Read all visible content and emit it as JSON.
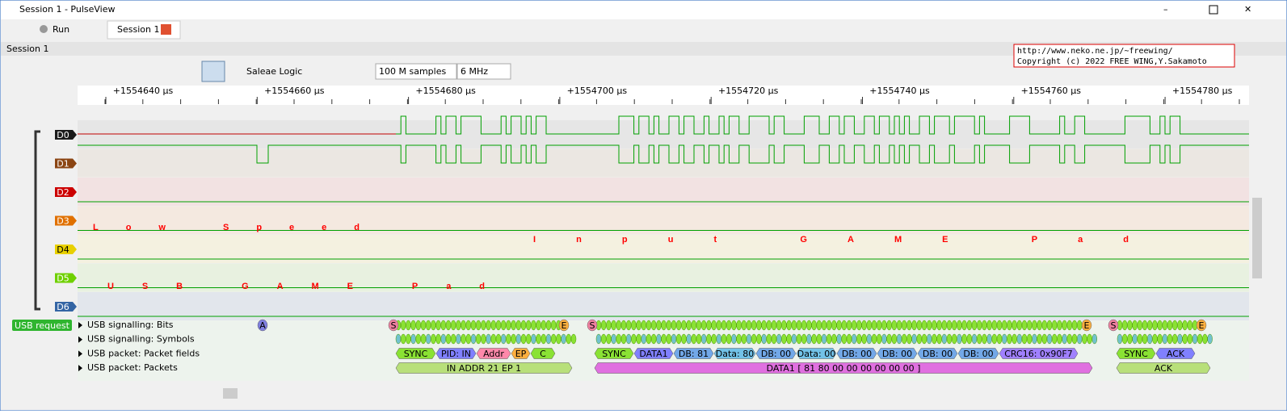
{
  "window": {
    "title": "Session 1 - PulseView"
  },
  "tabs": {
    "run": "Run",
    "session": "Session 1"
  },
  "session_label": "Session 1",
  "toolbar": {
    "device": "Saleae Logic",
    "samples": "100 M samples",
    "rate": "6 MHz"
  },
  "watermark": {
    "url": "http://www.neko.ne.jp/~freewing/",
    "copyright": "Copyright (c) 2022 FREE WING,Y.Sakamoto"
  },
  "ruler": {
    "labels": [
      "+1554640 µs",
      "+1554660 µs",
      "+1554680 µs",
      "+1554700 µs",
      "+1554720 µs",
      "+1554740 µs",
      "+1554760 µs",
      "+1554780 µs"
    ]
  },
  "channels": [
    "D0",
    "D1",
    "D2",
    "D3",
    "D4",
    "D5",
    "D6"
  ],
  "decoder": {
    "name": "USB request",
    "rows": [
      "USB signalling: Bits",
      "USB signalling: Symbols",
      "USB packet: Packet fields",
      "USB packet: Packets"
    ],
    "bit_markers": [
      "A",
      "S",
      "E",
      "S",
      "E",
      "S",
      "E"
    ],
    "packets": [
      {
        "fields": [
          "SYNC",
          "PID: IN",
          "Addr",
          "EP",
          "C"
        ],
        "summary": "IN ADDR 21 EP 1"
      },
      {
        "fields": [
          "SYNC",
          "DATA1",
          "DB: 81",
          "Data: 80",
          "DB: 00",
          "Data: 00",
          "DB: 00",
          "DB: 00",
          "DB: 00",
          "DB: 00",
          "CRC16: 0x90F7"
        ],
        "summary": "DATA1 [ 81 80 00 00 00 00 00 00 ]"
      },
      {
        "fields": [
          "SYNC",
          "ACK"
        ],
        "summary": "ACK"
      }
    ]
  },
  "overlay": {
    "line1": "Low Speed",
    "line2": "USB GAME Pad",
    "line3": "Input GAME Pad"
  }
}
